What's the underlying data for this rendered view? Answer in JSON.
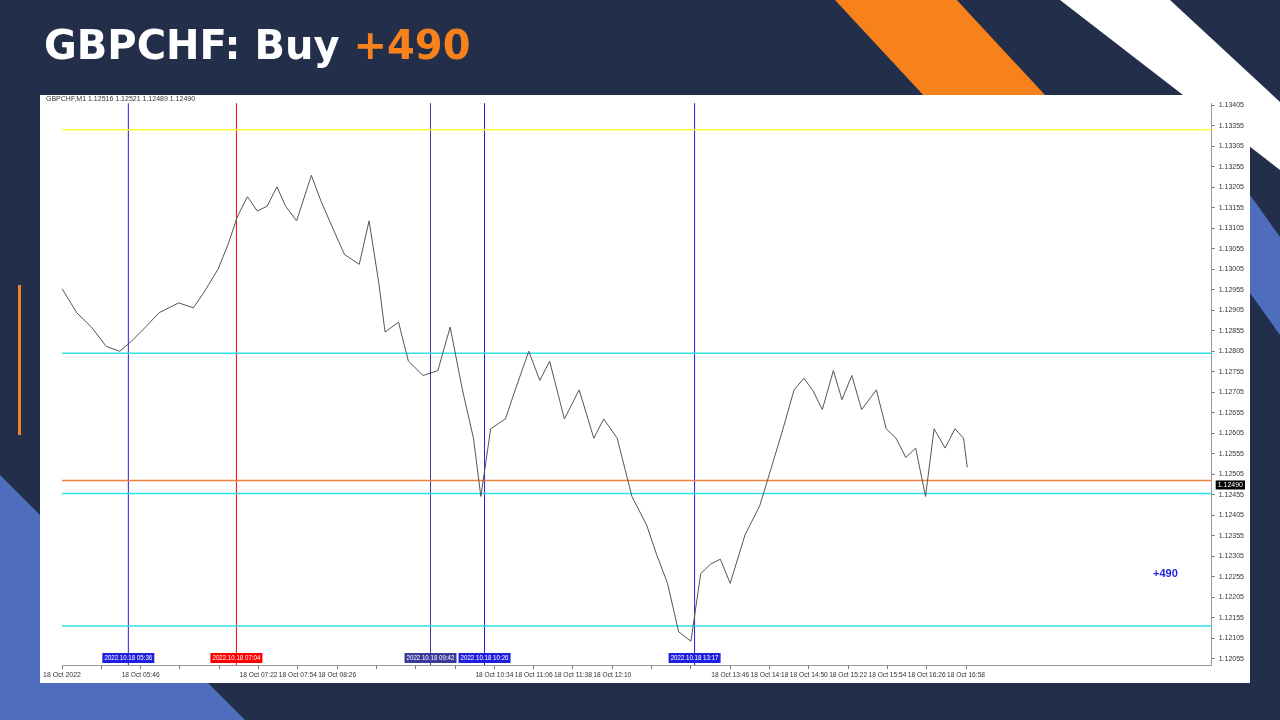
{
  "chart_data": {
    "type": "line",
    "title": "GBPCHF: Buy",
    "subtitle": "+490",
    "annotations": [
      "GBPCHF,M1  1.12516 1.12521 1.12489 1.12490",
      "+490"
    ],
    "series": [
      {
        "color": "#555555",
        "x": [
          "2022-10-18T04:42",
          "2022-10-18T04:54",
          "2022-10-18T05:06",
          "2022-10-18T05:18",
          "2022-10-18T05:29",
          "2022-10-18T05:38",
          "2022-10-18T05:50",
          "2022-10-18T06:01",
          "2022-10-18T06:17",
          "2022-10-18T06:29",
          "2022-10-18T06:37",
          "2022-10-18T06:49",
          "2022-10-18T06:57",
          "2022-10-18T07:05",
          "2022-10-18T07:13",
          "2022-10-18T07:21",
          "2022-10-18T07:29",
          "2022-10-18T07:37",
          "2022-10-18T07:44",
          "2022-10-18T07:53",
          "2022-10-18T08:05",
          "2022-10-18T08:13",
          "2022-10-18T08:25",
          "2022-10-18T08:32",
          "2022-10-18T08:44",
          "2022-10-18T08:52",
          "2022-10-18T09:00",
          "2022-10-18T09:05",
          "2022-10-18T09:16",
          "2022-10-18T09:24",
          "2022-10-18T09:36",
          "2022-10-18T09:48",
          "2022-10-18T09:58",
          "2022-10-18T10:08",
          "2022-10-18T10:17",
          "2022-10-18T10:23",
          "2022-10-18T10:31",
          "2022-10-18T10:43",
          "2022-10-18T10:51",
          "2022-10-18T11:02",
          "2022-10-18T11:11",
          "2022-10-18T11:19",
          "2022-10-18T11:31",
          "2022-10-18T11:43",
          "2022-10-18T11:55",
          "2022-10-18T12:03",
          "2022-10-18T12:14",
          "2022-10-18T12:26",
          "2022-10-18T12:38",
          "2022-10-18T12:46",
          "2022-10-18T12:55",
          "2022-10-18T13:04",
          "2022-10-18T13:14",
          "2022-10-18T13:22",
          "2022-10-18T13:30",
          "2022-10-18T13:38",
          "2022-10-18T13:46",
          "2022-10-18T13:58",
          "2022-10-18T14:10",
          "2022-10-18T14:22",
          "2022-10-18T14:29",
          "2022-10-18T14:38",
          "2022-10-18T14:46",
          "2022-10-18T14:53",
          "2022-10-18T15:01",
          "2022-10-18T15:10",
          "2022-10-18T15:17",
          "2022-10-18T15:25",
          "2022-10-18T15:33",
          "2022-10-18T15:45",
          "2022-10-18T15:53",
          "2022-10-18T16:01",
          "2022-10-18T16:09",
          "2022-10-18T16:17",
          "2022-10-18T16:25",
          "2022-10-18T16:32",
          "2022-10-18T16:41",
          "2022-10-18T16:49",
          "2022-10-18T16:56",
          "2022-10-18T16:59"
        ],
        "values": [
          1.12958,
          1.12899,
          1.12864,
          1.12817,
          1.12805,
          1.12828,
          1.12864,
          1.12899,
          1.12923,
          1.12911,
          1.12946,
          1.13005,
          1.13064,
          1.13135,
          1.13182,
          1.13147,
          1.13159,
          1.13206,
          1.13159,
          1.13123,
          1.13234,
          1.1317,
          1.13088,
          1.13041,
          1.13017,
          1.13123,
          1.1297,
          1.12852,
          1.12876,
          1.12781,
          1.12746,
          1.12758,
          1.12864,
          1.12711,
          1.12593,
          1.12451,
          1.12616,
          1.1264,
          1.12711,
          1.12805,
          1.12734,
          1.12781,
          1.1264,
          1.12711,
          1.12593,
          1.1264,
          1.12593,
          1.12451,
          1.12381,
          1.1231,
          1.12239,
          1.12121,
          1.12098,
          1.12263,
          1.12286,
          1.12298,
          1.12239,
          1.12357,
          1.12428,
          1.12546,
          1.12616,
          1.12711,
          1.12739,
          1.12711,
          1.12663,
          1.12758,
          1.12687,
          1.12746,
          1.12663,
          1.12711,
          1.12616,
          1.12593,
          1.12546,
          1.12569,
          1.12451,
          1.12616,
          1.12569,
          1.12616,
          1.12593,
          1.12522
        ]
      }
    ],
    "xlim": [
      "2022-10-18T04:42",
      "2022-10-18T20:18"
    ],
    "xticks": [
      {
        "value": "2022-10-18T04:42",
        "label": "18 Oct 2022"
      },
      {
        "value": "2022-10-18T05:14",
        "label": null
      },
      {
        "value": "2022-10-18T05:46",
        "label": "18 Oct 05:46"
      },
      {
        "value": "2022-10-18T06:18",
        "label": null
      },
      {
        "value": "2022-10-18T06:50",
        "label": null
      },
      {
        "value": "2022-10-18T07:22",
        "label": "18 Oct 07:22"
      },
      {
        "value": "2022-10-18T07:54",
        "label": "18 Oct 07:54"
      },
      {
        "value": "2022-10-18T08:26",
        "label": "18 Oct 08:26"
      },
      {
        "value": "2022-10-18T08:58",
        "label": null
      },
      {
        "value": "2022-10-18T09:30",
        "label": null
      },
      {
        "value": "2022-10-18T10:02",
        "label": null
      },
      {
        "value": "2022-10-18T10:34",
        "label": "18 Oct 10:34"
      },
      {
        "value": "2022-10-18T11:06",
        "label": "18 Oct 11:06"
      },
      {
        "value": "2022-10-18T11:38",
        "label": "18 Oct 11:38"
      },
      {
        "value": "2022-10-18T12:10",
        "label": "18 Oct 12:10"
      },
      {
        "value": "2022-10-18T12:42",
        "label": null
      },
      {
        "value": "2022-10-18T13:14",
        "label": null
      },
      {
        "value": "2022-10-18T13:46",
        "label": "18 Oct 13:46"
      },
      {
        "value": "2022-10-18T14:18",
        "label": "18 Oct 14:18"
      },
      {
        "value": "2022-10-18T14:50",
        "label": "18 Oct 14:50"
      },
      {
        "value": "2022-10-18T15:22",
        "label": "18 Oct 15:22"
      },
      {
        "value": "2022-10-18T15:54",
        "label": "18 Oct 15:54"
      },
      {
        "value": "2022-10-18T16:26",
        "label": "18 Oct 16:26"
      },
      {
        "value": "2022-10-18T16:58",
        "label": "18 Oct 16:58"
      }
    ],
    "ylim": [
      1.1204,
      1.1341
    ],
    "yticks": [
      1.12055,
      1.12105,
      1.12155,
      1.12205,
      1.12255,
      1.12305,
      1.12355,
      1.12405,
      1.12455,
      1.12505,
      1.12555,
      1.12605,
      1.12655,
      1.12705,
      1.12755,
      1.12805,
      1.12855,
      1.12905,
      1.12955,
      1.13005,
      1.13055,
      1.13105,
      1.13155,
      1.13205,
      1.13255,
      1.13305,
      1.13355,
      1.13405
    ],
    "ref_lines": [
      {
        "axis": "x",
        "value": "2022-10-18T05:36",
        "label": "2022.10.18 05:36",
        "color": "#1f1fe0"
      },
      {
        "axis": "x",
        "value": "2022-10-18T07:04",
        "label": "2022.10.18 07:04",
        "color": "#ff0000"
      },
      {
        "axis": "x",
        "value": "2022-10-18T09:42",
        "label": "2022.10.18 09:42",
        "color": "#3a3a9a"
      },
      {
        "axis": "x",
        "value": "2022-10-18T10:26",
        "label": "2022.10.18 10:26",
        "color": "#1f1fe0"
      },
      {
        "axis": "x",
        "value": "2022-10-18T13:17",
        "label": "2022.10.18 13:17",
        "color": "#1f1fe0"
      },
      {
        "axis": "y",
        "value": 1.13345,
        "color": "#ffff33"
      },
      {
        "axis": "y",
        "value": 1.128,
        "color": "#33e0e8"
      },
      {
        "axis": "y",
        "value": 1.12458,
        "color": "#33e0e8"
      },
      {
        "axis": "y",
        "value": 1.12135,
        "color": "#33e0e8"
      },
      {
        "axis": "y",
        "value": 1.1249,
        "label": "1.12490",
        "color": "#f08040"
      }
    ],
    "grid": false,
    "legend": false,
    "marker": "none",
    "line_style": "solid"
  }
}
